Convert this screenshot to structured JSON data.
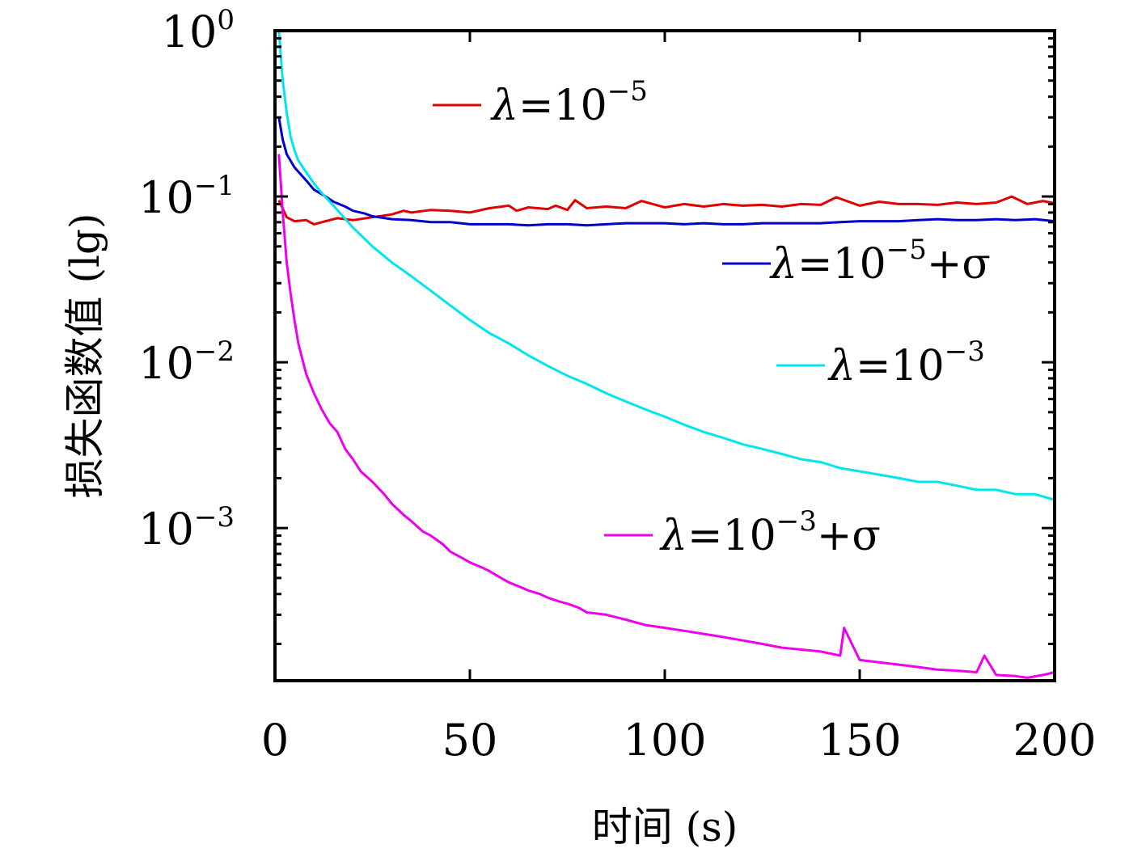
{
  "chart_data": {
    "type": "line",
    "title": "",
    "xlabel": "时间 (s)",
    "ylabel": "损失函数值 (lg)",
    "xlim": [
      0,
      200
    ],
    "ylim": [
      0.00012,
      1
    ],
    "yscale": "log",
    "grid": false,
    "xticks": [
      0,
      50,
      100,
      150,
      200
    ],
    "xtick_labels": [
      "0",
      "50",
      "100",
      "150",
      "200"
    ],
    "yticks": [
      1,
      0.1,
      0.01,
      0.001
    ],
    "ytick_labels": [
      {
        "base": "10",
        "exp": "0"
      },
      {
        "base": "10",
        "exp": "−1"
      },
      {
        "base": "10",
        "exp": "−2"
      },
      {
        "base": "10",
        "exp": "−3"
      }
    ],
    "series": [
      {
        "name": "λ=10^−5",
        "legend": {
          "lambda": "λ",
          "eq": "=10",
          "exp": "−5",
          "suffix": ""
        },
        "color": "#e00000",
        "x": [
          1,
          3,
          5,
          8,
          10,
          13,
          16,
          20,
          25,
          30,
          33,
          35,
          40,
          45,
          50,
          55,
          60,
          62,
          65,
          70,
          72,
          75,
          77,
          80,
          85,
          90,
          94,
          100,
          105,
          110,
          115,
          120,
          125,
          130,
          135,
          140,
          144,
          150,
          155,
          160,
          165,
          170,
          175,
          180,
          185,
          189,
          193,
          197,
          200
        ],
        "y": [
          0.095,
          0.075,
          0.071,
          0.072,
          0.068,
          0.071,
          0.074,
          0.072,
          0.075,
          0.078,
          0.082,
          0.08,
          0.083,
          0.082,
          0.08,
          0.085,
          0.088,
          0.082,
          0.086,
          0.084,
          0.088,
          0.083,
          0.095,
          0.085,
          0.087,
          0.085,
          0.094,
          0.086,
          0.09,
          0.087,
          0.09,
          0.088,
          0.089,
          0.087,
          0.09,
          0.089,
          0.099,
          0.088,
          0.093,
          0.09,
          0.09,
          0.089,
          0.092,
          0.09,
          0.092,
          0.1,
          0.09,
          0.094,
          0.091
        ],
        "legend_position": "top-center"
      },
      {
        "name": "λ=10^−5+σ",
        "legend": {
          "lambda": "λ",
          "eq": "=10",
          "exp": "−5",
          "suffix": "+σ"
        },
        "color": "#0000cc",
        "x": [
          1,
          2,
          3,
          5,
          8,
          10,
          13,
          15,
          18,
          20,
          23,
          25,
          30,
          35,
          40,
          45,
          50,
          55,
          60,
          65,
          70,
          75,
          80,
          85,
          90,
          95,
          100,
          105,
          110,
          115,
          120,
          125,
          130,
          135,
          140,
          145,
          150,
          155,
          160,
          165,
          170,
          175,
          180,
          185,
          190,
          195,
          200
        ],
        "y": [
          0.3,
          0.22,
          0.18,
          0.15,
          0.125,
          0.11,
          0.1,
          0.093,
          0.087,
          0.082,
          0.079,
          0.076,
          0.073,
          0.072,
          0.07,
          0.07,
          0.068,
          0.068,
          0.068,
          0.067,
          0.068,
          0.068,
          0.067,
          0.068,
          0.069,
          0.069,
          0.069,
          0.068,
          0.069,
          0.068,
          0.068,
          0.069,
          0.069,
          0.069,
          0.069,
          0.07,
          0.071,
          0.071,
          0.071,
          0.072,
          0.073,
          0.072,
          0.072,
          0.073,
          0.072,
          0.073,
          0.071
        ],
        "legend_position": "right"
      },
      {
        "name": "λ=10^−3",
        "legend": {
          "lambda": "λ",
          "eq": "=10",
          "exp": "−3",
          "suffix": ""
        },
        "color": "#00e5ee",
        "x": [
          1,
          2,
          3,
          4,
          5,
          6,
          8,
          10,
          12,
          15,
          20,
          25,
          30,
          35,
          40,
          45,
          50,
          55,
          60,
          65,
          70,
          75,
          80,
          85,
          90,
          95,
          100,
          105,
          110,
          115,
          120,
          125,
          130,
          135,
          140,
          145,
          150,
          155,
          160,
          165,
          170,
          175,
          180,
          185,
          190,
          195,
          200
        ],
        "y": [
          1.0,
          0.5,
          0.32,
          0.23,
          0.19,
          0.165,
          0.14,
          0.12,
          0.105,
          0.088,
          0.065,
          0.05,
          0.04,
          0.033,
          0.027,
          0.022,
          0.018,
          0.015,
          0.013,
          0.011,
          0.0095,
          0.0083,
          0.0074,
          0.0065,
          0.0058,
          0.0052,
          0.0047,
          0.0042,
          0.0038,
          0.0035,
          0.0032,
          0.003,
          0.0028,
          0.0026,
          0.0025,
          0.0023,
          0.0022,
          0.0021,
          0.002,
          0.0019,
          0.0019,
          0.0018,
          0.0017,
          0.0017,
          0.0016,
          0.0016,
          0.00148
        ],
        "legend_position": "right"
      },
      {
        "name": "λ=10^−3+σ",
        "legend": {
          "lambda": "λ",
          "eq": "=10",
          "exp": "−3",
          "suffix": "+σ"
        },
        "color": "#ee00ee",
        "x": [
          1,
          2,
          3,
          4,
          5,
          6,
          7,
          8,
          10,
          12,
          14,
          16,
          18,
          20,
          22,
          25,
          28,
          30,
          33,
          35,
          38,
          40,
          43,
          45,
          48,
          50,
          53,
          55,
          58,
          60,
          63,
          65,
          68,
          70,
          73,
          75,
          78,
          80,
          85,
          90,
          95,
          100,
          105,
          110,
          115,
          120,
          125,
          130,
          135,
          140,
          145,
          146,
          150,
          155,
          160,
          165,
          170,
          175,
          180,
          182,
          185,
          190,
          193,
          197,
          200
        ],
        "y": [
          0.18,
          0.08,
          0.04,
          0.026,
          0.018,
          0.013,
          0.0105,
          0.0085,
          0.0065,
          0.0052,
          0.0043,
          0.0038,
          0.003,
          0.0026,
          0.0022,
          0.0019,
          0.0016,
          0.0014,
          0.0012,
          0.0011,
          0.00095,
          0.0009,
          0.0008,
          0.00072,
          0.00066,
          0.00062,
          0.00058,
          0.00055,
          0.0005,
          0.00047,
          0.00044,
          0.00042,
          0.0004,
          0.00038,
          0.00036,
          0.00035,
          0.00033,
          0.00031,
          0.0003,
          0.00028,
          0.00026,
          0.00025,
          0.00024,
          0.00023,
          0.00022,
          0.00021,
          0.0002,
          0.00019,
          0.000185,
          0.00018,
          0.00017,
          0.00025,
          0.00016,
          0.000155,
          0.00015,
          0.000145,
          0.00014,
          0.000138,
          0.000135,
          0.00017,
          0.00013,
          0.000128,
          0.000125,
          0.00013,
          0.000135
        ],
        "legend_position": "bottom-center"
      }
    ]
  }
}
